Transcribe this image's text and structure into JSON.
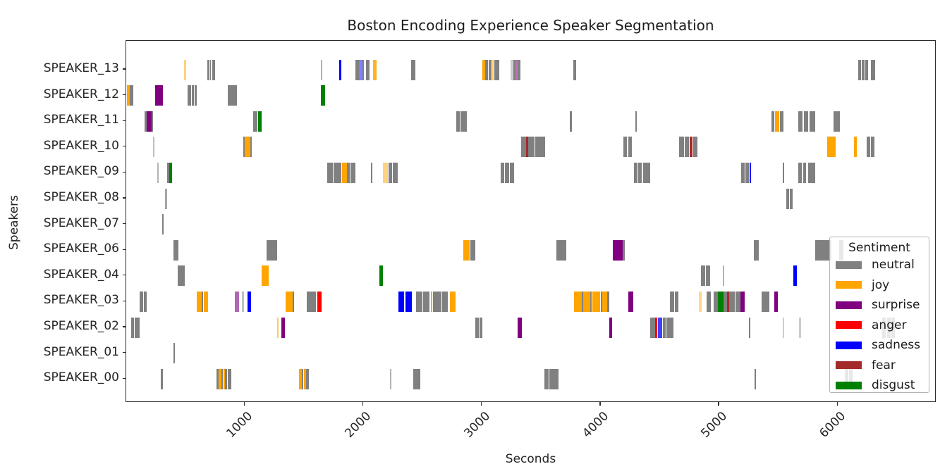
{
  "figure": {
    "title": "Boston Encoding Experience Speaker Segmentation",
    "xlabel": "Seconds",
    "ylabel": "Speakers"
  },
  "legend": {
    "title": "Sentiment",
    "entries": [
      {
        "label": "neutral",
        "color": "#808080"
      },
      {
        "label": "joy",
        "color": "#FFA500"
      },
      {
        "label": "surprise",
        "color": "#800080"
      },
      {
        "label": "anger",
        "color": "#FF0000"
      },
      {
        "label": "sadness",
        "color": "#0000FF"
      },
      {
        "label": "fear",
        "color": "#A52A2A"
      },
      {
        "label": "disgust",
        "color": "#008000"
      }
    ]
  },
  "chart_data": {
    "type": "bar",
    "subtype": "broken-barh-speaker-timeline",
    "title": "Boston Encoding Experience Speaker Segmentation",
    "xlabel": "Seconds",
    "ylabel": "Speakers",
    "xlim": [
      0,
      6830
    ],
    "xticks": [
      1000,
      2000,
      3000,
      4000,
      5000,
      6000
    ],
    "grid": false,
    "legend_position": "inside-right",
    "sentiment_colors": {
      "neutral": "#808080",
      "joy": "#FFA500",
      "surprise": "#800080",
      "anger": "#FF0000",
      "sadness": "#0000FF",
      "fear": "#A52A2A",
      "disgust": "#008000"
    },
    "speakers": [
      {
        "name": "SPEAKER_13",
        "segments": [
          [
            490,
            505,
            "joy",
            0.5
          ],
          [
            684,
            702,
            "neutral"
          ],
          [
            708,
            716,
            "neutral"
          ],
          [
            726,
            750,
            "neutral"
          ],
          [
            1638,
            1650,
            "neutral",
            0.6
          ],
          [
            1795,
            1815,
            "sadness"
          ],
          [
            1930,
            1962,
            "neutral"
          ],
          [
            1962,
            1990,
            "sadness",
            0.5
          ],
          [
            1992,
            2004,
            "neutral"
          ],
          [
            2020,
            2052,
            "neutral"
          ],
          [
            2080,
            2112,
            "joy",
            0.85
          ],
          [
            2400,
            2438,
            "neutral"
          ],
          [
            3000,
            3025,
            "joy"
          ],
          [
            3028,
            3052,
            "neutral"
          ],
          [
            3056,
            3080,
            "neutral"
          ],
          [
            3084,
            3098,
            "joy",
            0.6
          ],
          [
            3100,
            3145,
            "neutral"
          ],
          [
            3238,
            3262,
            "neutral",
            0.4
          ],
          [
            3265,
            3280,
            "neutral"
          ],
          [
            3282,
            3299,
            "surprise",
            0.55
          ],
          [
            3300,
            3322,
            "neutral"
          ],
          [
            3770,
            3792,
            "neutral"
          ],
          [
            6170,
            6196,
            "neutral"
          ],
          [
            6202,
            6222,
            "neutral"
          ],
          [
            6228,
            6252,
            "neutral"
          ],
          [
            6280,
            6312,
            "neutral"
          ]
        ]
      },
      {
        "name": "SPEAKER_12",
        "segments": [
          [
            5,
            30,
            "joy"
          ],
          [
            30,
            62,
            "neutral"
          ],
          [
            243,
            312,
            "surprise"
          ],
          [
            520,
            544,
            "neutral"
          ],
          [
            550,
            570,
            "neutral"
          ],
          [
            576,
            592,
            "neutral"
          ],
          [
            858,
            896,
            "neutral"
          ],
          [
            900,
            936,
            "neutral"
          ],
          [
            1640,
            1678,
            "disgust"
          ]
        ]
      },
      {
        "name": "SPEAKER_11",
        "segments": [
          [
            156,
            170,
            "neutral"
          ],
          [
            170,
            212,
            "surprise"
          ],
          [
            212,
            224,
            "neutral"
          ],
          [
            1068,
            1106,
            "neutral"
          ],
          [
            1110,
            1140,
            "disgust"
          ],
          [
            2782,
            2812,
            "neutral"
          ],
          [
            2820,
            2870,
            "neutral"
          ],
          [
            3738,
            3754,
            "neutral"
          ],
          [
            4290,
            4306,
            "neutral"
          ],
          [
            5440,
            5464,
            "neutral"
          ],
          [
            5466,
            5506,
            "joy"
          ],
          [
            5510,
            5540,
            "neutral"
          ],
          [
            5665,
            5700,
            "neutral"
          ],
          [
            5712,
            5748,
            "neutral"
          ],
          [
            5760,
            5808,
            "neutral"
          ],
          [
            5960,
            6016,
            "neutral"
          ]
        ]
      },
      {
        "name": "SPEAKER_10",
        "segments": [
          [
            226,
            240,
            "neutral",
            0.5
          ],
          [
            986,
            998,
            "neutral"
          ],
          [
            998,
            1046,
            "joy"
          ],
          [
            1046,
            1056,
            "neutral"
          ],
          [
            3330,
            3368,
            "neutral"
          ],
          [
            3370,
            3386,
            "fear"
          ],
          [
            3390,
            3442,
            "neutral"
          ],
          [
            3450,
            3532,
            "neutral"
          ],
          [
            4192,
            4222,
            "neutral"
          ],
          [
            4232,
            4262,
            "neutral"
          ],
          [
            4658,
            4700,
            "neutral"
          ],
          [
            4706,
            4746,
            "neutral"
          ],
          [
            4748,
            4776,
            "fear"
          ],
          [
            4778,
            4816,
            "neutral"
          ],
          [
            5908,
            5982,
            "joy"
          ],
          [
            6134,
            6158,
            "joy"
          ],
          [
            6240,
            6270,
            "neutral"
          ],
          [
            6276,
            6306,
            "neutral"
          ]
        ]
      },
      {
        "name": "SPEAKER_09",
        "segments": [
          [
            264,
            276,
            "neutral",
            0.6
          ],
          [
            342,
            360,
            "neutral"
          ],
          [
            362,
            388,
            "disgust"
          ],
          [
            1692,
            1716,
            "neutral"
          ],
          [
            1720,
            1742,
            "neutral"
          ],
          [
            1746,
            1770,
            "neutral"
          ],
          [
            1774,
            1816,
            "neutral"
          ],
          [
            1818,
            1858,
            "joy"
          ],
          [
            1862,
            1886,
            "neutral"
          ],
          [
            1890,
            1934,
            "neutral"
          ],
          [
            2064,
            2076,
            "neutral"
          ],
          [
            2166,
            2208,
            "joy",
            0.5
          ],
          [
            2212,
            2242,
            "neutral"
          ],
          [
            2246,
            2290,
            "neutral"
          ],
          [
            3155,
            3186,
            "neutral"
          ],
          [
            3194,
            3226,
            "neutral"
          ],
          [
            3236,
            3270,
            "neutral"
          ],
          [
            4282,
            4310,
            "neutral"
          ],
          [
            4318,
            4346,
            "neutral"
          ],
          [
            4356,
            4416,
            "neutral"
          ],
          [
            5186,
            5216,
            "neutral"
          ],
          [
            5222,
            5246,
            "neutral"
          ],
          [
            5256,
            5268,
            "sadness"
          ],
          [
            5534,
            5546,
            "neutral"
          ],
          [
            5664,
            5692,
            "neutral"
          ],
          [
            5706,
            5732,
            "neutral"
          ],
          [
            5746,
            5806,
            "neutral"
          ]
        ]
      },
      {
        "name": "SPEAKER_08",
        "segments": [
          [
            328,
            342,
            "neutral",
            0.7
          ],
          [
            5564,
            5590,
            "neutral"
          ],
          [
            5592,
            5618,
            "neutral"
          ]
        ]
      },
      {
        "name": "SPEAKER_07",
        "segments": [
          [
            304,
            318,
            "neutral"
          ]
        ]
      },
      {
        "name": "SPEAKER_06",
        "segments": [
          [
            398,
            438,
            "neutral"
          ],
          [
            1184,
            1274,
            "neutral"
          ],
          [
            2844,
            2896,
            "joy"
          ],
          [
            2898,
            2940,
            "neutral"
          ],
          [
            3628,
            3710,
            "neutral"
          ],
          [
            4104,
            4184,
            "surprise"
          ],
          [
            4184,
            4200,
            "neutral"
          ],
          [
            5288,
            5332,
            "neutral"
          ],
          [
            5808,
            5944,
            "neutral"
          ],
          [
            6010,
            6048,
            "neutral"
          ]
        ]
      },
      {
        "name": "SPEAKER_04",
        "segments": [
          [
            434,
            496,
            "neutral"
          ],
          [
            1140,
            1202,
            "joy"
          ],
          [
            2132,
            2166,
            "disgust"
          ],
          [
            4846,
            4880,
            "neutral"
          ],
          [
            4888,
            4924,
            "neutral"
          ],
          [
            5028,
            5042,
            "neutral",
            0.6
          ],
          [
            5624,
            5652,
            "sadness"
          ]
        ]
      },
      {
        "name": "SPEAKER_03",
        "segments": [
          [
            112,
            142,
            "neutral"
          ],
          [
            146,
            172,
            "neutral"
          ],
          [
            594,
            636,
            "joy"
          ],
          [
            638,
            650,
            "neutral"
          ],
          [
            652,
            688,
            "joy"
          ],
          [
            914,
            952,
            "surprise",
            0.6
          ],
          [
            974,
            992,
            "neutral",
            0.5
          ],
          [
            1022,
            1054,
            "sadness"
          ],
          [
            1342,
            1400,
            "joy"
          ],
          [
            1402,
            1416,
            "neutral"
          ],
          [
            1520,
            1556,
            "neutral"
          ],
          [
            1560,
            1602,
            "neutral"
          ],
          [
            1610,
            1648,
            "anger"
          ],
          [
            2292,
            2340,
            "sadness"
          ],
          [
            2352,
            2410,
            "sadness"
          ],
          [
            2444,
            2496,
            "neutral"
          ],
          [
            2500,
            2558,
            "neutral"
          ],
          [
            2568,
            2582,
            "joy"
          ],
          [
            2586,
            2660,
            "neutral"
          ],
          [
            2664,
            2712,
            "neutral"
          ],
          [
            2726,
            2778,
            "joy"
          ],
          [
            3772,
            3838,
            "joy"
          ],
          [
            3840,
            3852,
            "neutral"
          ],
          [
            3854,
            3912,
            "joy"
          ],
          [
            3914,
            3926,
            "neutral"
          ],
          [
            3928,
            3996,
            "joy"
          ],
          [
            3998,
            4010,
            "neutral"
          ],
          [
            4012,
            4054,
            "joy"
          ],
          [
            4056,
            4072,
            "neutral"
          ],
          [
            4234,
            4274,
            "surprise"
          ],
          [
            4584,
            4620,
            "neutral"
          ],
          [
            4626,
            4656,
            "neutral"
          ],
          [
            4824,
            4852,
            "joy",
            0.45
          ],
          [
            4894,
            4928,
            "neutral"
          ],
          [
            4954,
            4990,
            "neutral"
          ],
          [
            4990,
            5034,
            "disgust"
          ],
          [
            5034,
            5062,
            "neutral"
          ],
          [
            5062,
            5084,
            "fear"
          ],
          [
            5084,
            5132,
            "neutral"
          ],
          [
            5136,
            5180,
            "neutral"
          ],
          [
            5180,
            5212,
            "surprise"
          ],
          [
            5354,
            5390,
            "neutral"
          ],
          [
            5394,
            5422,
            "neutral"
          ],
          [
            5464,
            5492,
            "surprise"
          ]
        ]
      },
      {
        "name": "SPEAKER_02",
        "segments": [
          [
            42,
            66,
            "neutral"
          ],
          [
            70,
            94,
            "neutral"
          ],
          [
            98,
            112,
            "neutral"
          ],
          [
            1270,
            1282,
            "joy",
            0.6
          ],
          [
            1310,
            1340,
            "surprise"
          ],
          [
            2944,
            2972,
            "neutral"
          ],
          [
            2976,
            3004,
            "neutral"
          ],
          [
            3302,
            3334,
            "surprise"
          ],
          [
            4074,
            4098,
            "surprise"
          ],
          [
            4418,
            4456,
            "neutral"
          ],
          [
            4458,
            4478,
            "anger"
          ],
          [
            4482,
            4518,
            "sadness",
            0.75
          ],
          [
            4522,
            4548,
            "neutral"
          ],
          [
            4552,
            4576,
            "neutral"
          ],
          [
            4580,
            4612,
            "neutral"
          ],
          [
            5248,
            5262,
            "neutral"
          ],
          [
            5534,
            5548,
            "neutral",
            0.4
          ],
          [
            5670,
            5686,
            "neutral",
            0.4
          ],
          [
            6375,
            6405,
            "neutral"
          ],
          [
            6412,
            6445,
            "neutral"
          ],
          [
            6450,
            6480,
            "neutral"
          ]
        ]
      },
      {
        "name": "SPEAKER_01",
        "segments": [
          [
            396,
            410,
            "neutral"
          ]
        ]
      },
      {
        "name": "SPEAKER_00",
        "segments": [
          [
            294,
            308,
            "neutral"
          ],
          [
            758,
            776,
            "neutral"
          ],
          [
            778,
            800,
            "joy"
          ],
          [
            802,
            816,
            "neutral"
          ],
          [
            818,
            832,
            "joy"
          ],
          [
            834,
            852,
            "neutral"
          ],
          [
            856,
            888,
            "neutral"
          ],
          [
            1454,
            1478,
            "joy"
          ],
          [
            1480,
            1494,
            "neutral"
          ],
          [
            1496,
            1514,
            "joy"
          ],
          [
            1516,
            1540,
            "neutral"
          ],
          [
            2224,
            2238,
            "neutral",
            0.6
          ],
          [
            2418,
            2476,
            "neutral"
          ],
          [
            3526,
            3560,
            "neutral"
          ],
          [
            3564,
            3600,
            "neutral"
          ],
          [
            3604,
            3646,
            "neutral"
          ],
          [
            5296,
            5310,
            "neutral"
          ],
          [
            6055,
            6085,
            "neutral"
          ],
          [
            6090,
            6120,
            "neutral"
          ]
        ]
      }
    ]
  }
}
